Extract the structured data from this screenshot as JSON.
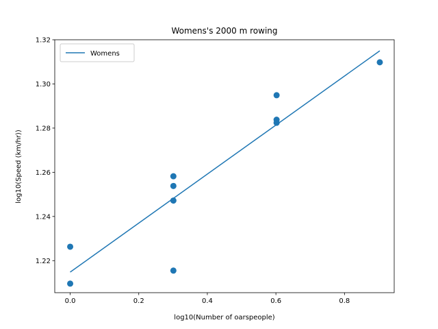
{
  "chart_data": {
    "type": "scatter",
    "title": "Womens's 2000 m rowing",
    "xlabel": "log10(Number of oarspeople)",
    "ylabel": "log10(Speed (km/hr))",
    "xlim": [
      -0.045,
      0.945
    ],
    "ylim": [
      1.2055,
      1.32
    ],
    "xticks": [
      0.0,
      0.2,
      0.4,
      0.6,
      0.8
    ],
    "xtick_labels": [
      "0.0",
      "0.2",
      "0.4",
      "0.6",
      "0.8"
    ],
    "yticks": [
      1.22,
      1.24,
      1.26,
      1.28,
      1.3,
      1.32
    ],
    "ytick_labels": [
      "1.22",
      "1.24",
      "1.26",
      "1.28",
      "1.30",
      "1.32"
    ],
    "grid": false,
    "legend": {
      "position": "top-left",
      "entries": [
        "Womens"
      ]
    },
    "color": "#1f77b4",
    "points": [
      {
        "x": 0.0,
        "y": 1.2263
      },
      {
        "x": 0.0,
        "y": 1.2096
      },
      {
        "x": 0.301,
        "y": 1.2582
      },
      {
        "x": 0.301,
        "y": 1.2538
      },
      {
        "x": 0.301,
        "y": 1.2472
      },
      {
        "x": 0.301,
        "y": 1.2155
      },
      {
        "x": 0.602,
        "y": 1.2949
      },
      {
        "x": 0.602,
        "y": 1.2838
      },
      {
        "x": 0.602,
        "y": 1.2824
      },
      {
        "x": 0.903,
        "y": 1.3098
      }
    ],
    "series": [
      {
        "name": "Womens",
        "type": "line",
        "x": [
          0.0,
          0.903
        ],
        "y": [
          1.2148,
          1.315
        ]
      }
    ]
  }
}
